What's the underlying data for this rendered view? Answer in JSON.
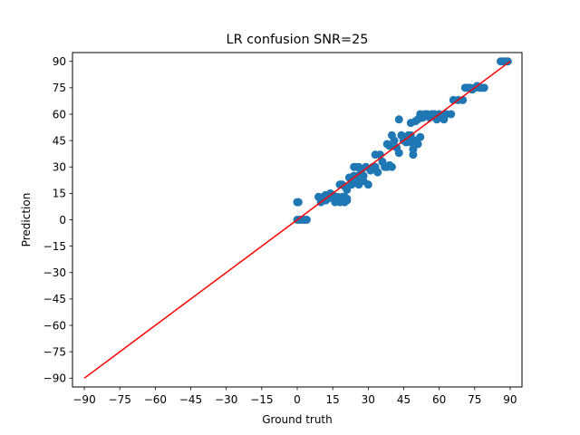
{
  "chart_data": {
    "type": "scatter",
    "title": "LR confusion SNR=25",
    "xlabel": "Ground truth",
    "ylabel": "Prediction",
    "xlim": [
      -95,
      95
    ],
    "ylim": [
      -95,
      95
    ],
    "xticks": [
      -90,
      -75,
      -60,
      -45,
      -30,
      -15,
      0,
      15,
      30,
      45,
      60,
      75,
      90
    ],
    "yticks": [
      -90,
      -75,
      -60,
      -45,
      -30,
      -15,
      0,
      15,
      30,
      45,
      60,
      75,
      90
    ],
    "tick_labels": [
      "−90",
      "−75",
      "−60",
      "−45",
      "−30",
      "−15",
      "0",
      "15",
      "30",
      "45",
      "60",
      "75",
      "90"
    ],
    "grid": false,
    "scatter_color": "#1f77b4",
    "line_color": "#ff0000",
    "reference_line": {
      "x": [
        -90,
        90
      ],
      "y": [
        -90,
        90
      ]
    },
    "points": [
      [
        0,
        10
      ],
      [
        0.5,
        10
      ],
      [
        0,
        0
      ],
      [
        1,
        0
      ],
      [
        2,
        0
      ],
      [
        3,
        0
      ],
      [
        4,
        0
      ],
      [
        9,
        13
      ],
      [
        10,
        12
      ],
      [
        10,
        10
      ],
      [
        11,
        13
      ],
      [
        12,
        14
      ],
      [
        12,
        11
      ],
      [
        13,
        12
      ],
      [
        14,
        15
      ],
      [
        15,
        14
      ],
      [
        16,
        12
      ],
      [
        16,
        10
      ],
      [
        17,
        13
      ],
      [
        18,
        10
      ],
      [
        19,
        13
      ],
      [
        20,
        10
      ],
      [
        20,
        13
      ],
      [
        21,
        12
      ],
      [
        21,
        11
      ],
      [
        18,
        20
      ],
      [
        19,
        20
      ],
      [
        20,
        19
      ],
      [
        21,
        17
      ],
      [
        22,
        24
      ],
      [
        23,
        20
      ],
      [
        24,
        25
      ],
      [
        25,
        22
      ],
      [
        26,
        25
      ],
      [
        26,
        20
      ],
      [
        24,
        30
      ],
      [
        25,
        30
      ],
      [
        26,
        30
      ],
      [
        27,
        28
      ],
      [
        28,
        25
      ],
      [
        28,
        22
      ],
      [
        29,
        30
      ],
      [
        30,
        20
      ],
      [
        31,
        28
      ],
      [
        32,
        30
      ],
      [
        33,
        30
      ],
      [
        34,
        27
      ],
      [
        33,
        37
      ],
      [
        35,
        37
      ],
      [
        36,
        33
      ],
      [
        37,
        30
      ],
      [
        38,
        30
      ],
      [
        39,
        31
      ],
      [
        40,
        30
      ],
      [
        38,
        43
      ],
      [
        39,
        42
      ],
      [
        40,
        48
      ],
      [
        41,
        45
      ],
      [
        42,
        41
      ],
      [
        43,
        38
      ],
      [
        43,
        57
      ],
      [
        44,
        48
      ],
      [
        45,
        45
      ],
      [
        46,
        44
      ],
      [
        47,
        46
      ],
      [
        47,
        48
      ],
      [
        48,
        44
      ],
      [
        48,
        48
      ],
      [
        49,
        40
      ],
      [
        49,
        37
      ],
      [
        50,
        45
      ],
      [
        51,
        43
      ],
      [
        52,
        47
      ],
      [
        48,
        55
      ],
      [
        50,
        56
      ],
      [
        51,
        57
      ],
      [
        52,
        60
      ],
      [
        53,
        58
      ],
      [
        54,
        60
      ],
      [
        55,
        60
      ],
      [
        56,
        58
      ],
      [
        57,
        60
      ],
      [
        58,
        60
      ],
      [
        59,
        57
      ],
      [
        60,
        60
      ],
      [
        61,
        58
      ],
      [
        62,
        57
      ],
      [
        63,
        60
      ],
      [
        65,
        60
      ],
      [
        66,
        68
      ],
      [
        68,
        68
      ],
      [
        70,
        68
      ],
      [
        71,
        75
      ],
      [
        72,
        75
      ],
      [
        73,
        75
      ],
      [
        74,
        74
      ],
      [
        75,
        75
      ],
      [
        76,
        76
      ],
      [
        77,
        75
      ],
      [
        78,
        75
      ],
      [
        79,
        75
      ],
      [
        86,
        90
      ],
      [
        87,
        90
      ],
      [
        88,
        90
      ],
      [
        89,
        90
      ]
    ]
  }
}
